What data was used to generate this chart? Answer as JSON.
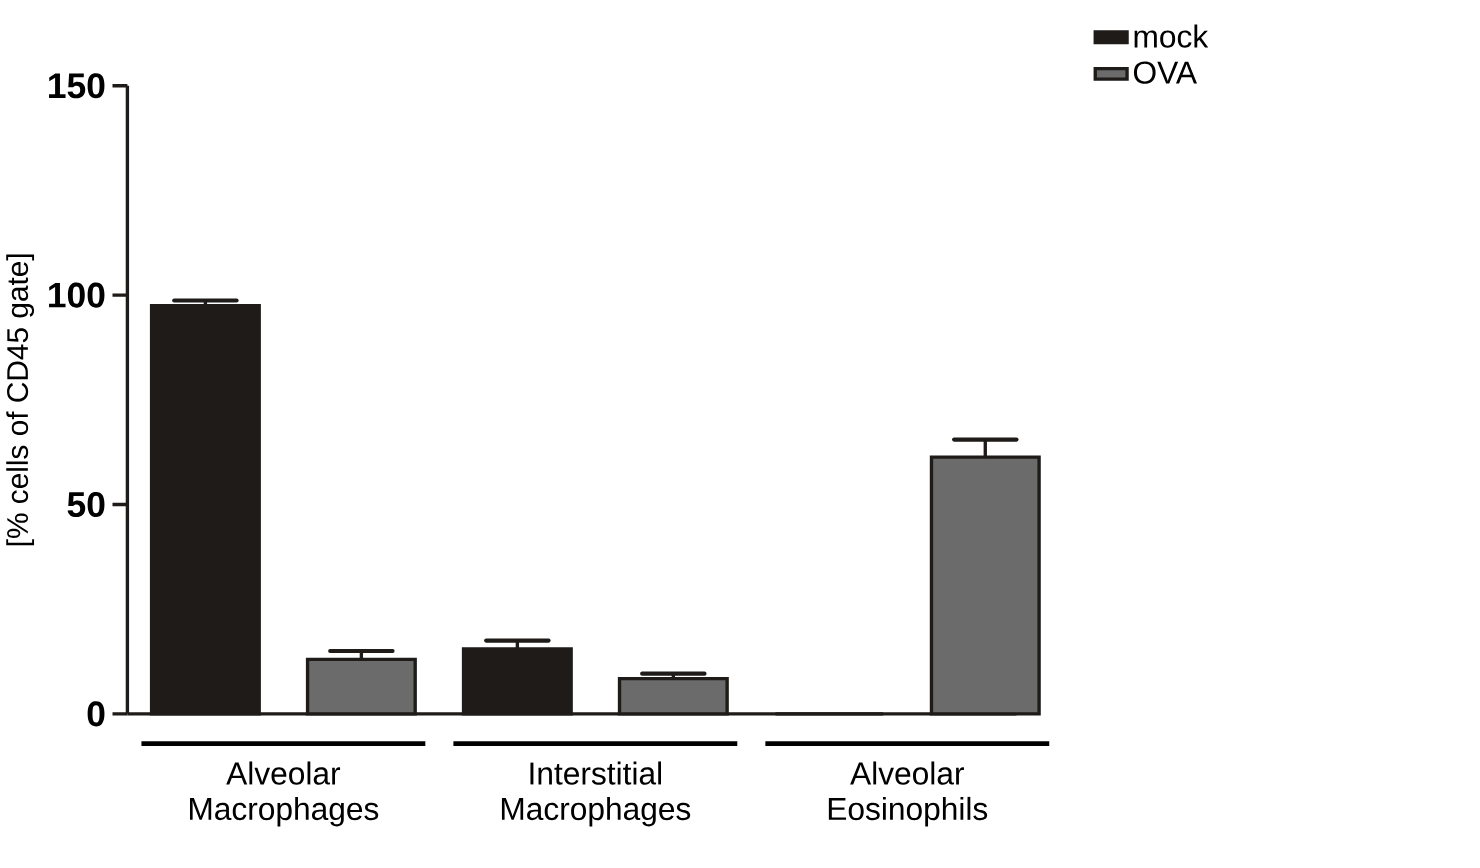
{
  "chart_data": {
    "type": "bar",
    "ylabel": "[% cells of CD45 gate]",
    "categories": [
      "Alveolar Macrophages",
      "Interstitial Macrophages",
      "Alveolar Eosinophils"
    ],
    "series": [
      {
        "name": "mock",
        "color": "#1e1b18",
        "values": [
          97.5,
          15.5,
          0
        ],
        "errors": [
          1.2,
          2,
          null
        ]
      },
      {
        "name": "OVA",
        "color": "#6b6b6b",
        "values": [
          13,
          8.4,
          61.3
        ],
        "errors": [
          2,
          1.2,
          4.2
        ]
      }
    ],
    "ylim": [
      0,
      150
    ],
    "yticks": [
      0,
      50,
      100,
      150
    ],
    "legend": "top right"
  }
}
